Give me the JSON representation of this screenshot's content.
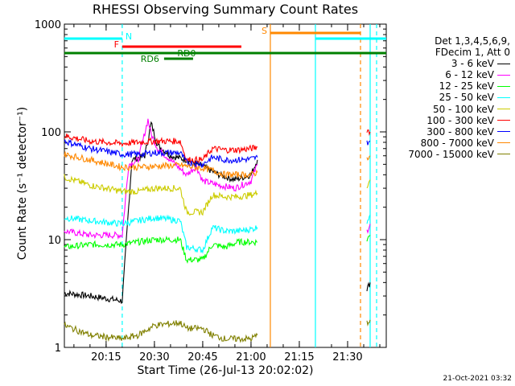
{
  "chart_data": {
    "type": "line",
    "title": "RHESSI Observing Summary Count Rates",
    "xlabel": "Start Time (26-Jul-13 20:02:02)",
    "ylabel": "Count Rate (s⁻¹ detector⁻¹)",
    "y_scale": "log",
    "ylim": [
      1,
      1000
    ],
    "yticks": [
      1,
      10,
      100,
      1000
    ],
    "ytick_labels": [
      "1",
      "10",
      "100",
      "1000"
    ],
    "xlim": [
      "20:02:02",
      "21:42:00"
    ],
    "xticks": [
      "20:15",
      "20:30",
      "20:45",
      "21:00",
      "21:15",
      "21:30"
    ],
    "grid": false,
    "legend_position": "right",
    "legend_header": [
      "Det 1,3,4,5,6,9,",
      "FDecim 1, Att 0"
    ],
    "timestamp": "21-Oct-2021 03:32",
    "series": [
      {
        "name": "3 - 6 keV",
        "color": "#000000",
        "x": [
          "20:02",
          "20:10",
          "20:20",
          "20:23",
          "20:27",
          "20:29",
          "20:31",
          "20:35",
          "20:40",
          "20:45",
          "20:50",
          "20:55",
          "21:00",
          "21:02",
          "21:36",
          "21:37"
        ],
        "y": [
          3.2,
          3.0,
          2.7,
          55,
          60,
          120,
          75,
          60,
          55,
          48,
          40,
          36,
          40,
          55,
          3.5,
          4.0
        ]
      },
      {
        "name": "6 - 12 keV",
        "color": "#ff00ff",
        "x": [
          "20:02",
          "20:10",
          "20:20",
          "20:22",
          "20:25",
          "20:28",
          "20:29",
          "20:31",
          "20:35",
          "20:40",
          "20:43",
          "20:45",
          "20:50",
          "20:55",
          "21:00",
          "21:02",
          "21:36",
          "21:37"
        ],
        "y": [
          12,
          11,
          11,
          50,
          55,
          130,
          95,
          70,
          55,
          40,
          48,
          35,
          32,
          30,
          35,
          50,
          12,
          14
        ]
      },
      {
        "name": "12 - 25 keV",
        "color": "#00ff00",
        "x": [
          "20:02",
          "20:10",
          "20:20",
          "20:25",
          "20:30",
          "20:38",
          "20:40",
          "20:45",
          "20:48",
          "20:52",
          "20:56",
          "21:00",
          "21:02",
          "21:36",
          "21:37"
        ],
        "y": [
          8.5,
          9.0,
          9.0,
          9.5,
          10,
          10,
          6.5,
          6.5,
          9,
          8.5,
          9.5,
          9.5,
          9.5,
          10,
          11
        ]
      },
      {
        "name": "25 - 50 keV",
        "color": "#00ffff",
        "x": [
          "20:02",
          "20:10",
          "20:20",
          "20:25",
          "20:30",
          "20:38",
          "20:40",
          "20:45",
          "20:48",
          "20:52",
          "20:56",
          "21:00",
          "21:02",
          "21:36",
          "21:37"
        ],
        "y": [
          16,
          15,
          14,
          15,
          16,
          15,
          8.5,
          8,
          13,
          12,
          12,
          12.5,
          13,
          15,
          17
        ]
      },
      {
        "name": "50 - 100 keV",
        "color": "#cccc00",
        "x": [
          "20:02",
          "20:10",
          "20:20",
          "20:25",
          "20:30",
          "20:38",
          "20:40",
          "20:45",
          "20:48",
          "20:52",
          "20:56",
          "21:00",
          "21:02",
          "21:36",
          "21:37"
        ],
        "y": [
          38,
          32,
          28,
          28,
          30,
          30,
          18,
          18,
          26,
          25,
          25,
          26,
          27,
          32,
          36
        ]
      },
      {
        "name": "100 - 300 keV",
        "color": "#ff0000",
        "x": [
          "20:02",
          "20:10",
          "20:20",
          "20:25",
          "20:30",
          "20:38",
          "20:40",
          "20:45",
          "20:48",
          "20:52",
          "20:56",
          "21:00",
          "21:02",
          "21:36",
          "21:37"
        ],
        "y": [
          92,
          82,
          78,
          80,
          82,
          82,
          55,
          55,
          70,
          68,
          68,
          70,
          72,
          105,
          100
        ]
      },
      {
        "name": "300 - 800 keV",
        "color": "#0000ff",
        "x": [
          "20:02",
          "20:10",
          "20:20",
          "20:25",
          "20:30",
          "20:38",
          "20:40",
          "20:45",
          "20:48",
          "20:52",
          "20:56",
          "21:00",
          "21:02",
          "21:36",
          "21:37"
        ],
        "y": [
          82,
          70,
          62,
          62,
          64,
          64,
          52,
          50,
          58,
          55,
          55,
          56,
          58,
          80,
          82
        ]
      },
      {
        "name": "800 - 7000 keV",
        "color": "#ff8800",
        "x": [
          "20:02",
          "20:10",
          "20:20",
          "20:25",
          "20:30",
          "20:38",
          "20:40",
          "20:45",
          "20:48",
          "20:52",
          "20:56",
          "21:00",
          "21:02",
          "21:36",
          "21:37"
        ],
        "y": [
          62,
          55,
          47,
          47,
          48,
          49,
          48,
          46,
          44,
          40,
          40,
          40,
          42,
          58,
          60
        ]
      },
      {
        "name": "7000 - 15000 keV",
        "color": "#808000",
        "x": [
          "20:02",
          "20:10",
          "20:20",
          "20:25",
          "20:30",
          "20:38",
          "20:40",
          "20:45",
          "20:48",
          "20:52",
          "20:56",
          "21:00",
          "21:02",
          "21:36",
          "21:37"
        ],
        "y": [
          1.6,
          1.3,
          1.2,
          1.3,
          1.6,
          1.7,
          1.5,
          1.5,
          1.3,
          1.2,
          1.2,
          1.2,
          1.3,
          1.7,
          1.8
        ]
      }
    ],
    "flag_bars": [
      {
        "label": "N",
        "color": "#00ffff",
        "segments": [
          [
            "20:02",
            "20:20"
          ],
          [
            "21:20",
            "21:42"
          ]
        ]
      },
      {
        "label": "F",
        "color": "#ff0000",
        "segments": [
          [
            "20:20",
            "20:57"
          ]
        ]
      },
      {
        "label": "S",
        "color": "#ff8800",
        "segments": [
          [
            "21:06",
            "21:34"
          ]
        ]
      },
      {
        "label": "RD0",
        "color": "#008000",
        "segments": [
          [
            "20:02",
            "21:42"
          ]
        ]
      },
      {
        "label": "RD6",
        "color": "#008000",
        "segments": [
          [
            "20:33",
            "20:42"
          ]
        ]
      }
    ],
    "vertical_lines": [
      {
        "time": "20:20",
        "color": "#00ffff",
        "style": "dashed"
      },
      {
        "time": "21:06",
        "color": "#ff8800",
        "style": "solid"
      },
      {
        "time": "21:20",
        "color": "#00ffff",
        "style": "solid"
      },
      {
        "time": "21:34",
        "color": "#ff8800",
        "style": "dashed"
      },
      {
        "time": "21:37",
        "color": "#00ffff",
        "style": "solid"
      },
      {
        "time": "21:39",
        "color": "#00ffff",
        "style": "dashed"
      }
    ],
    "gaps": [
      [
        "21:03",
        "21:35"
      ]
    ]
  }
}
